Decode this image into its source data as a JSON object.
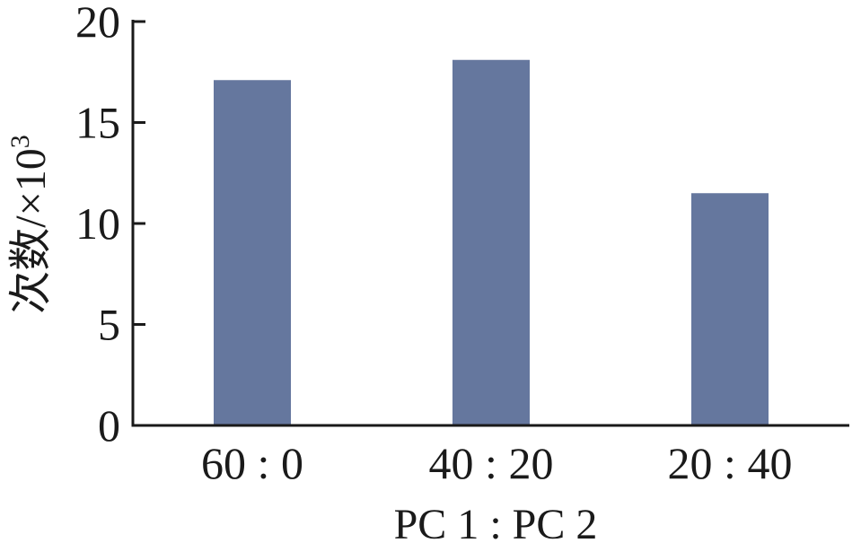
{
  "chart_data": {
    "type": "bar",
    "categories": [
      "60 : 0",
      "40 : 20",
      "20 : 40"
    ],
    "values": [
      17.1,
      18.1,
      11.5
    ],
    "xlabel": "PC 1 : PC 2",
    "ylabel": "次数/×10",
    "ylabel_superscript": "3",
    "ylim": [
      0,
      20
    ],
    "yticks": [
      "0",
      "5",
      "10",
      "15",
      "20"
    ],
    "grid": false,
    "bar_color": "#65779e",
    "axis_color": "#1a1a1a"
  }
}
